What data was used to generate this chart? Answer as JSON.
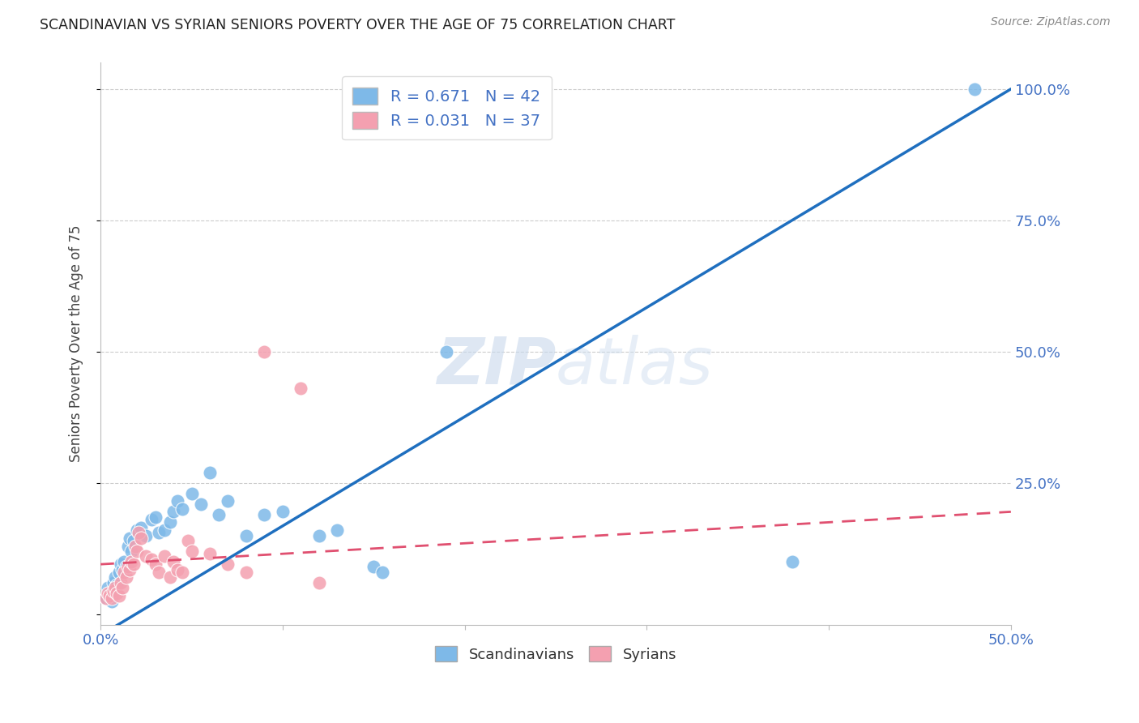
{
  "title": "SCANDINAVIAN VS SYRIAN SENIORS POVERTY OVER THE AGE OF 75 CORRELATION CHART",
  "source": "Source: ZipAtlas.com",
  "ylabel": "Seniors Poverty Over the Age of 75",
  "xlim": [
    0.0,
    0.5
  ],
  "ylim": [
    -0.02,
    1.05
  ],
  "xticks": [
    0.0,
    0.1,
    0.2,
    0.3,
    0.4,
    0.5
  ],
  "xticklabels": [
    "0.0%",
    "",
    "",
    "",
    "",
    "50.0%"
  ],
  "yticks_right": [
    0.0,
    0.25,
    0.5,
    0.75,
    1.0
  ],
  "yticklabels_right": [
    "",
    "25.0%",
    "50.0%",
    "75.0%",
    "100.0%"
  ],
  "scandinavian_color": "#7EB9E8",
  "syrian_color": "#F4A0B0",
  "trendline_scand_color": "#1F6FBF",
  "trendline_syr_color": "#E05070",
  "R_scand": 0.671,
  "N_scand": 42,
  "R_syr": 0.031,
  "N_syr": 37,
  "legend_text_color": "#4472C4",
  "scand_points": [
    [
      0.003,
      0.03
    ],
    [
      0.004,
      0.05
    ],
    [
      0.005,
      0.04
    ],
    [
      0.006,
      0.025
    ],
    [
      0.007,
      0.06
    ],
    [
      0.008,
      0.07
    ],
    [
      0.009,
      0.055
    ],
    [
      0.01,
      0.08
    ],
    [
      0.011,
      0.095
    ],
    [
      0.012,
      0.085
    ],
    [
      0.013,
      0.1
    ],
    [
      0.014,
      0.09
    ],
    [
      0.015,
      0.13
    ],
    [
      0.016,
      0.145
    ],
    [
      0.017,
      0.12
    ],
    [
      0.018,
      0.14
    ],
    [
      0.02,
      0.16
    ],
    [
      0.022,
      0.165
    ],
    [
      0.025,
      0.15
    ],
    [
      0.028,
      0.18
    ],
    [
      0.03,
      0.185
    ],
    [
      0.032,
      0.155
    ],
    [
      0.035,
      0.16
    ],
    [
      0.038,
      0.175
    ],
    [
      0.04,
      0.195
    ],
    [
      0.042,
      0.215
    ],
    [
      0.045,
      0.2
    ],
    [
      0.05,
      0.23
    ],
    [
      0.055,
      0.21
    ],
    [
      0.06,
      0.27
    ],
    [
      0.065,
      0.19
    ],
    [
      0.07,
      0.215
    ],
    [
      0.08,
      0.15
    ],
    [
      0.09,
      0.19
    ],
    [
      0.1,
      0.195
    ],
    [
      0.12,
      0.15
    ],
    [
      0.13,
      0.16
    ],
    [
      0.15,
      0.09
    ],
    [
      0.155,
      0.08
    ],
    [
      0.19,
      0.5
    ],
    [
      0.38,
      0.1
    ],
    [
      0.48,
      1.0
    ]
  ],
  "syr_points": [
    [
      0.003,
      0.03
    ],
    [
      0.004,
      0.04
    ],
    [
      0.005,
      0.035
    ],
    [
      0.006,
      0.03
    ],
    [
      0.007,
      0.045
    ],
    [
      0.008,
      0.05
    ],
    [
      0.009,
      0.04
    ],
    [
      0.01,
      0.035
    ],
    [
      0.011,
      0.06
    ],
    [
      0.012,
      0.05
    ],
    [
      0.013,
      0.08
    ],
    [
      0.014,
      0.07
    ],
    [
      0.015,
      0.09
    ],
    [
      0.016,
      0.085
    ],
    [
      0.017,
      0.1
    ],
    [
      0.018,
      0.095
    ],
    [
      0.019,
      0.13
    ],
    [
      0.02,
      0.12
    ],
    [
      0.021,
      0.155
    ],
    [
      0.022,
      0.145
    ],
    [
      0.025,
      0.11
    ],
    [
      0.028,
      0.105
    ],
    [
      0.03,
      0.095
    ],
    [
      0.032,
      0.08
    ],
    [
      0.035,
      0.11
    ],
    [
      0.038,
      0.07
    ],
    [
      0.04,
      0.1
    ],
    [
      0.042,
      0.085
    ],
    [
      0.045,
      0.08
    ],
    [
      0.048,
      0.14
    ],
    [
      0.05,
      0.12
    ],
    [
      0.06,
      0.115
    ],
    [
      0.07,
      0.095
    ],
    [
      0.08,
      0.08
    ],
    [
      0.09,
      0.5
    ],
    [
      0.11,
      0.43
    ],
    [
      0.12,
      0.06
    ]
  ],
  "scand_trend_x": [
    0.0,
    0.5
  ],
  "scand_trend_y": [
    -0.04,
    1.0
  ],
  "syr_trend_x": [
    0.0,
    0.5
  ],
  "syr_trend_y": [
    0.095,
    0.195
  ]
}
